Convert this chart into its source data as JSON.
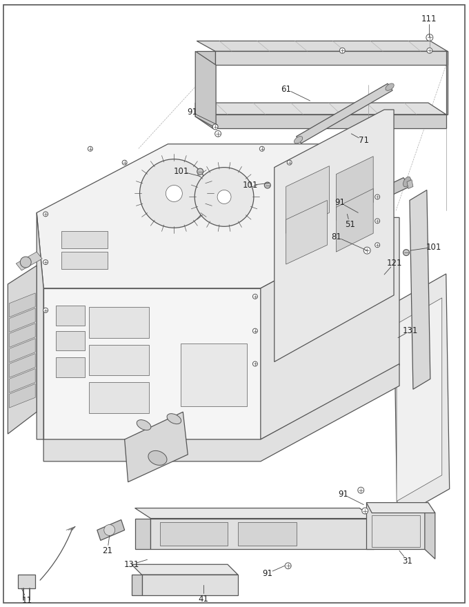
{
  "bg_color": "#ffffff",
  "line_color": "#555555",
  "label_color": "#222222",
  "label_fontsize": 8.5,
  "fig_width": 6.8,
  "fig_height": 8.8,
  "dpi": 100
}
